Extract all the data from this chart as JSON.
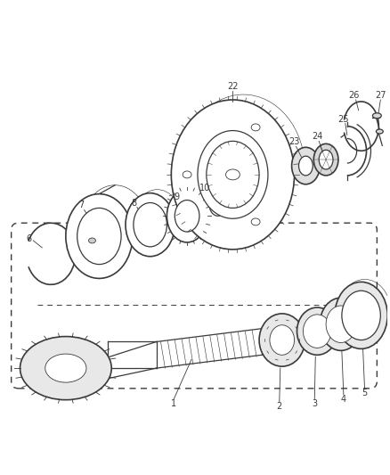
{
  "bg_color": "#ffffff",
  "line_color": "#3a3a3a",
  "fig_width": 4.38,
  "fig_height": 5.33,
  "dpi": 100,
  "label_fontsize": 7.0,
  "label_color": "#3a3a3a"
}
